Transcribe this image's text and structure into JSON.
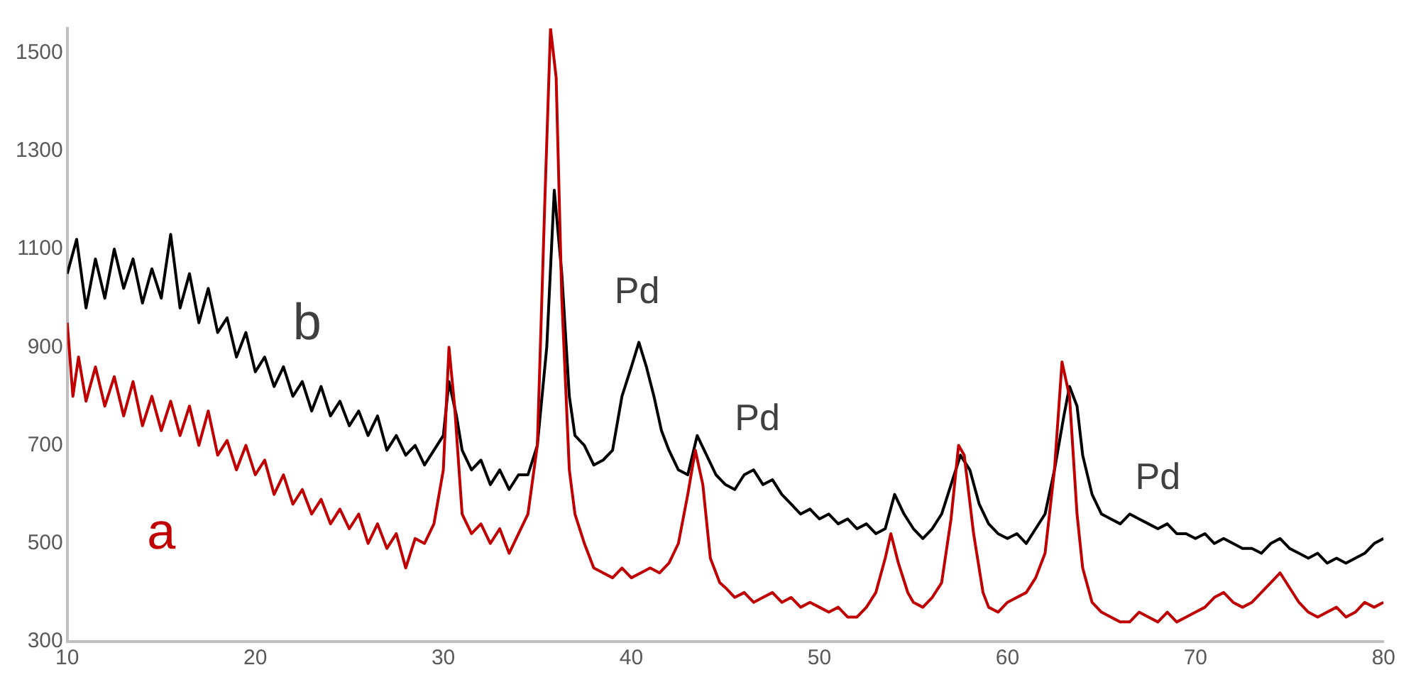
{
  "chart_data": {
    "type": "line",
    "xlim": [
      10,
      80
    ],
    "ylim": [
      300,
      1550
    ],
    "xticks": [
      10,
      20,
      30,
      40,
      50,
      60,
      70,
      80
    ],
    "yticks": [
      300,
      500,
      700,
      900,
      1100,
      1300,
      1500
    ],
    "grid": false,
    "legend": false,
    "marker": "none",
    "line_style": "solid",
    "annotations": [
      {
        "text": "Pd",
        "x": 40.3,
        "y": 910
      },
      {
        "text": "Pd",
        "x": 46.7,
        "y": 650
      },
      {
        "text": "Pd",
        "x": 68,
        "y": 530
      }
    ],
    "series": [
      {
        "name": "a",
        "color": "#c00000",
        "x": [
          10,
          10.3,
          10.6,
          11,
          11.5,
          12,
          12.5,
          13,
          13.5,
          14,
          14.5,
          15,
          15.5,
          16,
          16.5,
          17,
          17.5,
          18,
          18.5,
          19,
          19.5,
          20,
          20.5,
          21,
          21.5,
          22,
          22.5,
          23,
          23.5,
          24,
          24.5,
          25,
          25.5,
          26,
          26.5,
          27,
          27.5,
          28,
          28.5,
          29,
          29.5,
          30,
          30.3,
          30.6,
          31,
          31.5,
          32,
          32.5,
          33,
          33.5,
          34,
          34.5,
          35,
          35.4,
          35.7,
          36,
          36.3,
          36.7,
          37,
          37.5,
          38,
          38.5,
          39,
          39.5,
          40,
          40.5,
          41,
          41.5,
          42,
          42.5,
          43,
          43.4,
          43.8,
          44.2,
          44.7,
          45,
          45.5,
          46,
          46.5,
          47,
          47.5,
          48,
          48.5,
          49,
          49.5,
          50,
          50.5,
          51,
          51.5,
          52,
          52.5,
          53,
          53.5,
          53.8,
          54.2,
          54.7,
          55,
          55.5,
          56,
          56.5,
          57,
          57.4,
          57.7,
          58.2,
          58.7,
          59,
          59.5,
          60,
          60.5,
          61,
          61.5,
          62,
          62.5,
          62.9,
          63.3,
          63.7,
          64,
          64.5,
          65,
          65.5,
          66,
          66.5,
          67,
          67.5,
          68,
          68.5,
          69,
          69.5,
          70,
          70.5,
          71,
          71.5,
          72,
          72.5,
          73,
          73.5,
          74,
          74.5,
          75,
          75.5,
          76,
          76.5,
          77,
          77.5,
          78,
          78.5,
          79,
          79.5,
          80
        ],
        "values": [
          950,
          800,
          880,
          790,
          860,
          780,
          840,
          760,
          830,
          740,
          800,
          730,
          790,
          720,
          780,
          700,
          770,
          680,
          710,
          650,
          700,
          640,
          670,
          600,
          640,
          580,
          610,
          560,
          590,
          540,
          570,
          530,
          560,
          500,
          540,
          490,
          520,
          450,
          510,
          500,
          540,
          650,
          900,
          780,
          560,
          520,
          540,
          500,
          530,
          480,
          520,
          560,
          700,
          1200,
          1550,
          1450,
          1000,
          650,
          560,
          500,
          450,
          440,
          430,
          450,
          430,
          440,
          450,
          440,
          460,
          500,
          600,
          690,
          620,
          470,
          420,
          410,
          390,
          400,
          380,
          390,
          400,
          380,
          390,
          370,
          380,
          370,
          360,
          370,
          350,
          350,
          370,
          400,
          470,
          520,
          460,
          400,
          380,
          370,
          390,
          420,
          550,
          700,
          680,
          520,
          400,
          370,
          360,
          380,
          390,
          400,
          430,
          480,
          650,
          870,
          800,
          560,
          450,
          380,
          360,
          350,
          340,
          340,
          360,
          350,
          340,
          360,
          340,
          350,
          360,
          370,
          390,
          400,
          380,
          370,
          380,
          400,
          420,
          440,
          410,
          380,
          360,
          350,
          360,
          370,
          350,
          360,
          380,
          370,
          380
        ]
      },
      {
        "name": "b",
        "color": "#000000",
        "x": [
          10,
          10.5,
          11,
          11.5,
          12,
          12.5,
          13,
          13.5,
          14,
          14.5,
          15,
          15.5,
          16,
          16.5,
          17,
          17.5,
          18,
          18.5,
          19,
          19.5,
          20,
          20.5,
          21,
          21.5,
          22,
          22.5,
          23,
          23.5,
          24,
          24.5,
          25,
          25.5,
          26,
          26.5,
          27,
          27.5,
          28,
          28.5,
          29,
          29.5,
          30,
          30.3,
          30.7,
          31,
          31.5,
          32,
          32.5,
          33,
          33.5,
          34,
          34.5,
          35,
          35.5,
          35.9,
          36.3,
          36.7,
          37,
          37.5,
          38,
          38.5,
          39,
          39.5,
          40,
          40.4,
          40.8,
          41.2,
          41.6,
          42,
          42.5,
          43,
          43.5,
          44,
          44.5,
          45,
          45.5,
          46,
          46.5,
          47,
          47.5,
          48,
          48.5,
          49,
          49.5,
          50,
          50.5,
          51,
          51.5,
          52,
          52.5,
          53,
          53.5,
          54,
          54.5,
          55,
          55.5,
          56,
          56.5,
          57,
          57.5,
          58,
          58.5,
          59,
          59.5,
          60,
          60.5,
          61,
          61.5,
          62,
          62.5,
          63,
          63.3,
          63.7,
          64,
          64.5,
          65,
          65.5,
          66,
          66.5,
          67,
          67.5,
          68,
          68.5,
          69,
          69.5,
          70,
          70.5,
          71,
          71.5,
          72,
          72.5,
          73,
          73.5,
          74,
          74.5,
          75,
          75.5,
          76,
          76.5,
          77,
          77.5,
          78,
          78.5,
          79,
          79.5,
          80
        ],
        "values": [
          1050,
          1120,
          980,
          1080,
          1000,
          1100,
          1020,
          1080,
          990,
          1060,
          1000,
          1130,
          980,
          1050,
          950,
          1020,
          930,
          960,
          880,
          930,
          850,
          880,
          820,
          860,
          800,
          830,
          770,
          820,
          760,
          790,
          740,
          770,
          720,
          760,
          690,
          720,
          680,
          700,
          660,
          690,
          720,
          830,
          760,
          690,
          650,
          670,
          620,
          650,
          610,
          640,
          640,
          700,
          900,
          1220,
          1050,
          800,
          720,
          700,
          660,
          670,
          690,
          800,
          860,
          910,
          860,
          800,
          730,
          690,
          650,
          640,
          720,
          680,
          640,
          620,
          610,
          640,
          650,
          620,
          630,
          600,
          580,
          560,
          570,
          550,
          560,
          540,
          550,
          530,
          540,
          520,
          530,
          600,
          560,
          530,
          510,
          530,
          560,
          620,
          680,
          650,
          580,
          540,
          520,
          510,
          520,
          500,
          530,
          560,
          650,
          760,
          820,
          780,
          680,
          600,
          560,
          550,
          540,
          560,
          550,
          540,
          530,
          540,
          520,
          520,
          510,
          520,
          500,
          510,
          500,
          490,
          490,
          480,
          500,
          510,
          490,
          480,
          470,
          480,
          460,
          470,
          460,
          470,
          480,
          500,
          510
        ]
      }
    ]
  }
}
